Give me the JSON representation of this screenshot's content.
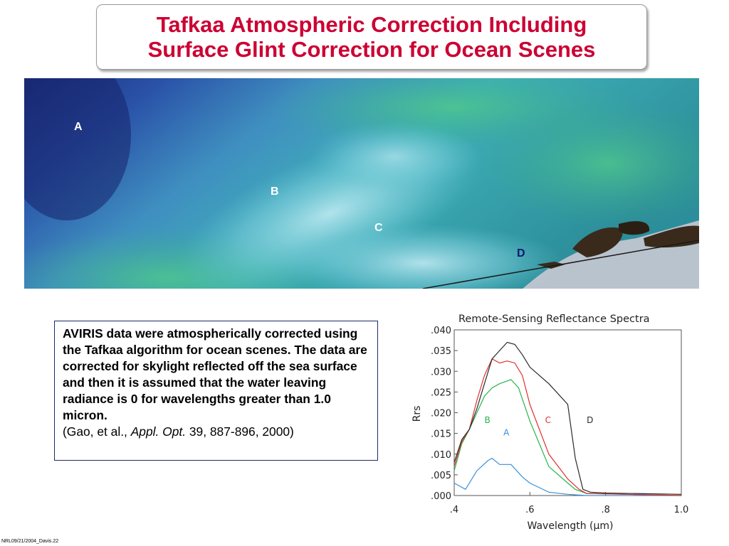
{
  "title": {
    "line1": "Tafkaa Atmospheric Correction Including",
    "line2": "Surface Glint Correction for Ocean Scenes"
  },
  "scene": {
    "labels": [
      {
        "id": "A",
        "text": "A",
        "color": "#ffffff"
      },
      {
        "id": "B",
        "text": "B",
        "color": "#ffffff"
      },
      {
        "id": "C",
        "text": "C",
        "color": "#ffffff"
      },
      {
        "id": "D",
        "text": "D",
        "color": "#0b1a6e"
      }
    ]
  },
  "description": {
    "bold_text": "AVIRIS data were atmospherically corrected using the Tafkaa algorithm for ocean scenes.  The data are corrected for skylight reflected off the sea surface and then it is assumed that the water leaving radiance is 0 for wavelengths greater than 1.0 micron.",
    "citation_prefix": "(Gao, et al., ",
    "citation_journal": "Appl. Opt.",
    "citation_suffix": " 39, 887-896, 2000)"
  },
  "footer": "NRL09/21/2004_Davis.22",
  "chart_data": {
    "type": "line",
    "title": "Remote-Sensing Reflectance Spectra",
    "xlabel": "Wavelength (μm)",
    "ylabel": "Rrs",
    "xlim": [
      0.4,
      1.0
    ],
    "ylim": [
      0.0,
      0.04
    ],
    "xticks": [
      ".4",
      ".6",
      ".8",
      "1.0"
    ],
    "yticks": [
      ".000",
      ".005",
      ".010",
      ".015",
      ".020",
      ".025",
      ".030",
      ".035",
      ".040"
    ],
    "series": [
      {
        "name": "A",
        "color": "#3a8fd6",
        "x": [
          0.4,
          0.43,
          0.46,
          0.49,
          0.5,
          0.52,
          0.55,
          0.58,
          0.6,
          0.65,
          0.7,
          0.75,
          1.0
        ],
        "y": [
          0.003,
          0.0015,
          0.006,
          0.0085,
          0.009,
          0.0075,
          0.0075,
          0.0045,
          0.003,
          0.0008,
          0.0003,
          0.0,
          0.0
        ]
      },
      {
        "name": "B",
        "color": "#27b34a",
        "x": [
          0.4,
          0.42,
          0.44,
          0.46,
          0.48,
          0.5,
          0.52,
          0.55,
          0.57,
          0.6,
          0.65,
          0.7,
          0.72,
          0.75,
          1.0
        ],
        "y": [
          0.006,
          0.0125,
          0.016,
          0.02,
          0.024,
          0.026,
          0.027,
          0.028,
          0.026,
          0.018,
          0.007,
          0.003,
          0.0015,
          0.0005,
          0.0
        ]
      },
      {
        "name": "C",
        "color": "#e03030",
        "x": [
          0.4,
          0.42,
          0.44,
          0.46,
          0.48,
          0.5,
          0.52,
          0.54,
          0.56,
          0.58,
          0.6,
          0.65,
          0.7,
          0.73,
          0.75,
          1.0
        ],
        "y": [
          0.007,
          0.013,
          0.016,
          0.023,
          0.029,
          0.033,
          0.032,
          0.0325,
          0.032,
          0.029,
          0.022,
          0.01,
          0.004,
          0.0015,
          0.0005,
          0.0
        ]
      },
      {
        "name": "D",
        "color": "#2a2a2a",
        "x": [
          0.4,
          0.42,
          0.44,
          0.46,
          0.48,
          0.5,
          0.52,
          0.54,
          0.56,
          0.58,
          0.6,
          0.65,
          0.68,
          0.7,
          0.72,
          0.74,
          0.76,
          0.8,
          1.0
        ],
        "y": [
          0.008,
          0.0135,
          0.016,
          0.021,
          0.027,
          0.033,
          0.035,
          0.037,
          0.0365,
          0.034,
          0.031,
          0.027,
          0.024,
          0.022,
          0.009,
          0.0015,
          0.0008,
          0.0006,
          0.0003
        ]
      }
    ]
  }
}
